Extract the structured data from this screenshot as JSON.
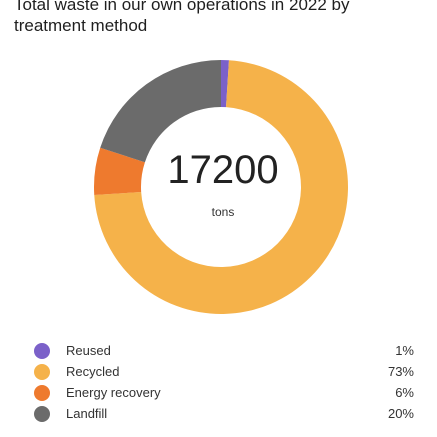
{
  "title": "Total waste in our own operations in 2022 by treatment method",
  "center": {
    "value": "17200",
    "unit": "tons"
  },
  "chart_data": {
    "type": "pie",
    "title": "Total waste in our own operations in 2022 by treatment method",
    "total": 17200,
    "unit": "tons",
    "categories": [
      "Reused",
      "Recycled",
      "Energy recovery",
      "Landfill"
    ],
    "values": [
      1,
      73,
      6,
      20
    ],
    "value_labels": [
      "1%",
      "73%",
      "6%",
      "20%"
    ],
    "colors": [
      "#7b61c9",
      "#f5b24a",
      "#ee7a2e",
      "#6b6b6b"
    ],
    "style": "donut",
    "legend_position": "bottom"
  }
}
